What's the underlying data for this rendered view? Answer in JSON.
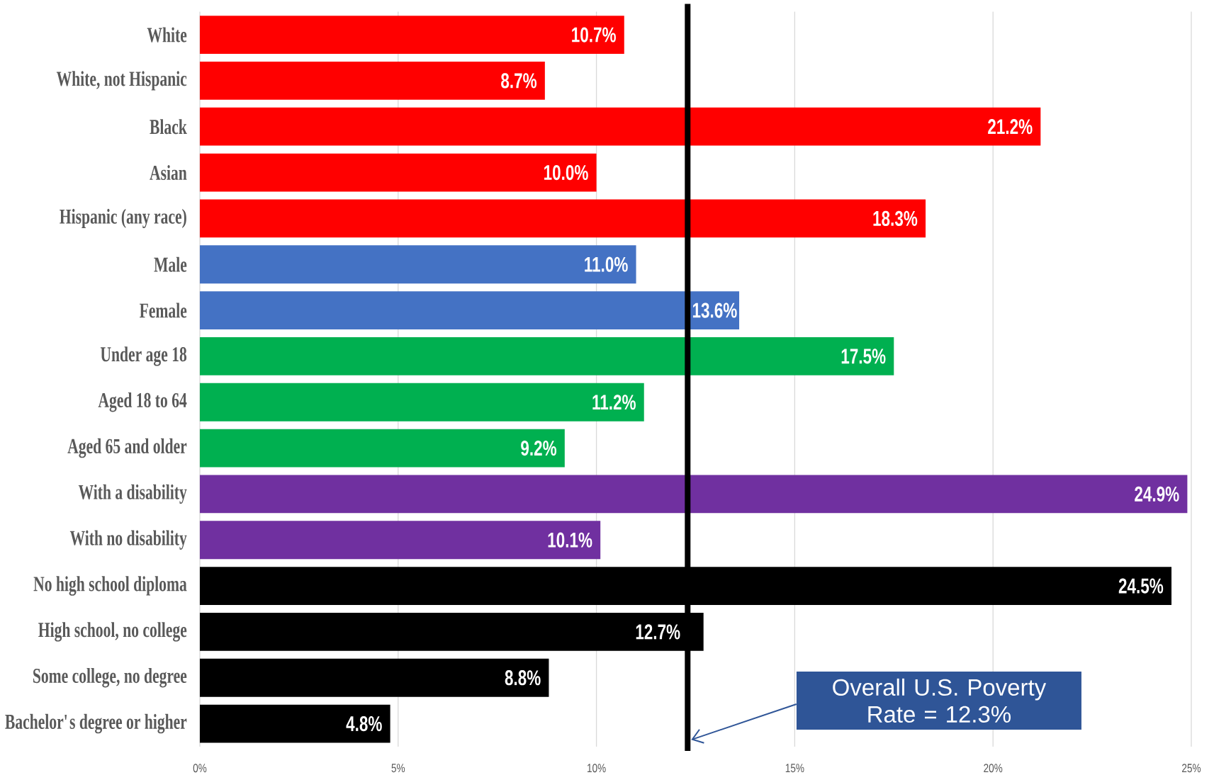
{
  "chart_data": {
    "type": "bar",
    "orientation": "horizontal",
    "categories": [
      "White",
      "White, not Hispanic",
      "Black",
      "Asian",
      "Hispanic (any race)",
      "Male",
      "Female",
      "Under age 18",
      "Aged 18 to 64",
      "Aged 65 and older",
      "With a disability",
      "With no disability",
      "No high school diploma",
      "High school, no college",
      "Some college, no degree",
      "Bachelor's degree or higher"
    ],
    "values": [
      10.7,
      8.7,
      21.2,
      10.0,
      18.3,
      11.0,
      13.6,
      17.5,
      11.2,
      9.2,
      24.9,
      10.1,
      24.5,
      12.7,
      8.8,
      4.8
    ],
    "colors": [
      "#ff0000",
      "#ff0000",
      "#ff0000",
      "#ff0000",
      "#ff0000",
      "#4472c4",
      "#4472c4",
      "#00b050",
      "#00b050",
      "#00b050",
      "#7030a0",
      "#7030a0",
      "#000000",
      "#000000",
      "#000000",
      "#000000"
    ],
    "value_labels": [
      "10.7%",
      "8.7%",
      "21.2%",
      "10.0%",
      "18.3%",
      "11.0%",
      "13.6%",
      "17.5%",
      "11.2%",
      "9.2%",
      "24.9%",
      "10.1%",
      "24.5%",
      "12.7%",
      "8.8%",
      "4.8%"
    ],
    "xlim": [
      0,
      25
    ],
    "xticks": [
      {
        "value": 0,
        "label": "0%"
      },
      {
        "value": 5,
        "label": "5%"
      },
      {
        "value": 10,
        "label": "10%"
      },
      {
        "value": 15,
        "label": "15%"
      },
      {
        "value": 20,
        "label": "20%"
      },
      {
        "value": 25,
        "label": "25%"
      }
    ],
    "grid": "x",
    "ref_lines": [
      {
        "axis": "x",
        "value": 12.3,
        "color": "#000000"
      }
    ],
    "annotations": [
      "Overall U.S. Poverty Rate = 12.3%"
    ]
  }
}
